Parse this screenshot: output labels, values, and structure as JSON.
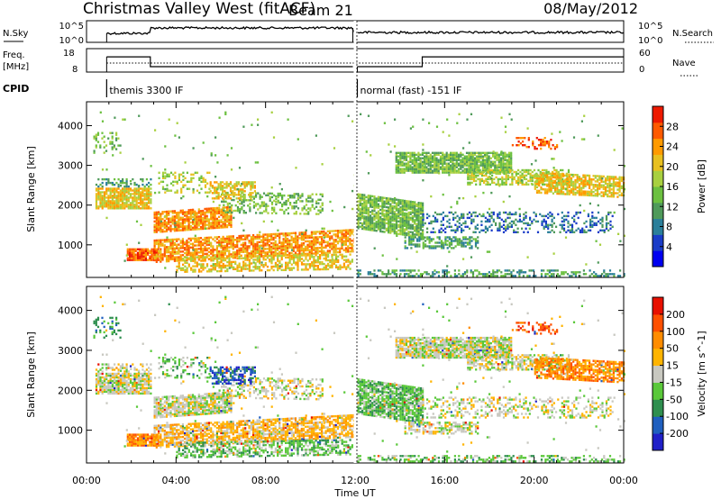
{
  "header": {
    "station": "Christmas Valley West (fitACF)",
    "beam": "Beam 21",
    "date": "08/May/2012"
  },
  "top_panels": {
    "nsky_label": "N.Sky",
    "nsky_ticks": [
      "10^5",
      "10^0"
    ],
    "nsearch_label": "N.Search",
    "nsearch_ticks": [
      "10^5",
      "10^0"
    ],
    "freq_label": "Freq.",
    "freq_unit": "[MHz]",
    "freq_ticks": [
      "18",
      "8"
    ],
    "nave_label": "Nave",
    "nave_ticks": [
      "60",
      "0"
    ],
    "cpid_label": "CPID",
    "cpid_segments": [
      {
        "start_hr": 0.9,
        "label": "themis 3300 IF"
      },
      {
        "start_hr": 12.1,
        "label": "normal (fast) -151 IF"
      }
    ],
    "freq_steps": [
      {
        "from_hr": 0.9,
        "to_hr": 2.85,
        "mhz": 14.5
      },
      {
        "from_hr": 2.85,
        "to_hr": 11.9,
        "mhz": 10.3
      },
      {
        "from_hr": 12.1,
        "to_hr": 15.0,
        "mhz": 10.3
      },
      {
        "from_hr": 15.0,
        "to_hr": 24.0,
        "mhz": 14.5
      }
    ]
  },
  "chart_data": [
    {
      "type": "heatmap",
      "title": "Power",
      "xlabel": "Time UT",
      "ylabel": "Slant Range [km]",
      "x_ticks": [
        "00:00",
        "04:00",
        "08:00",
        "12:00",
        "16:00",
        "20:00",
        "00:00"
      ],
      "x_range_hr": [
        0,
        24
      ],
      "y_ticks": [
        "1000",
        "2000",
        "3000",
        "4000"
      ],
      "y_range_km": [
        180,
        4600
      ],
      "colorbar": {
        "label": "Power [dB]",
        "ticks": [
          "28",
          "24",
          "20",
          "16",
          "12",
          "8",
          "4"
        ],
        "range": [
          0,
          30
        ],
        "colors": [
          "#0000f0",
          "#1a3cc8",
          "#2b7f9a",
          "#4f9a5a",
          "#6cc040",
          "#a8d040",
          "#e8c020",
          "#ff9a00",
          "#ff5a00",
          "#ee1a00"
        ]
      }
    },
    {
      "type": "heatmap",
      "title": "Velocity",
      "xlabel": "Time UT",
      "ylabel": "Slant Range [km]",
      "x_ticks": [
        "00:00",
        "04:00",
        "08:00",
        "12:00",
        "16:00",
        "20:00",
        "00:00"
      ],
      "x_range_hr": [
        0,
        24
      ],
      "y_ticks": [
        "1000",
        "2000",
        "3000",
        "4000"
      ],
      "y_range_km": [
        180,
        4600
      ],
      "colorbar": {
        "label": "Velocity [m s^-1]",
        "ticks": [
          "200",
          "100",
          "50",
          "15",
          "-15",
          "-50",
          "-100",
          "-200"
        ],
        "range": [
          -250,
          250
        ],
        "colors": [
          "#2020c8",
          "#1f5fbf",
          "#2f8f4f",
          "#5ac83a",
          "#c8c8c0",
          "#ffb400",
          "#ff8c00",
          "#ff5000",
          "#e81000"
        ]
      }
    }
  ]
}
